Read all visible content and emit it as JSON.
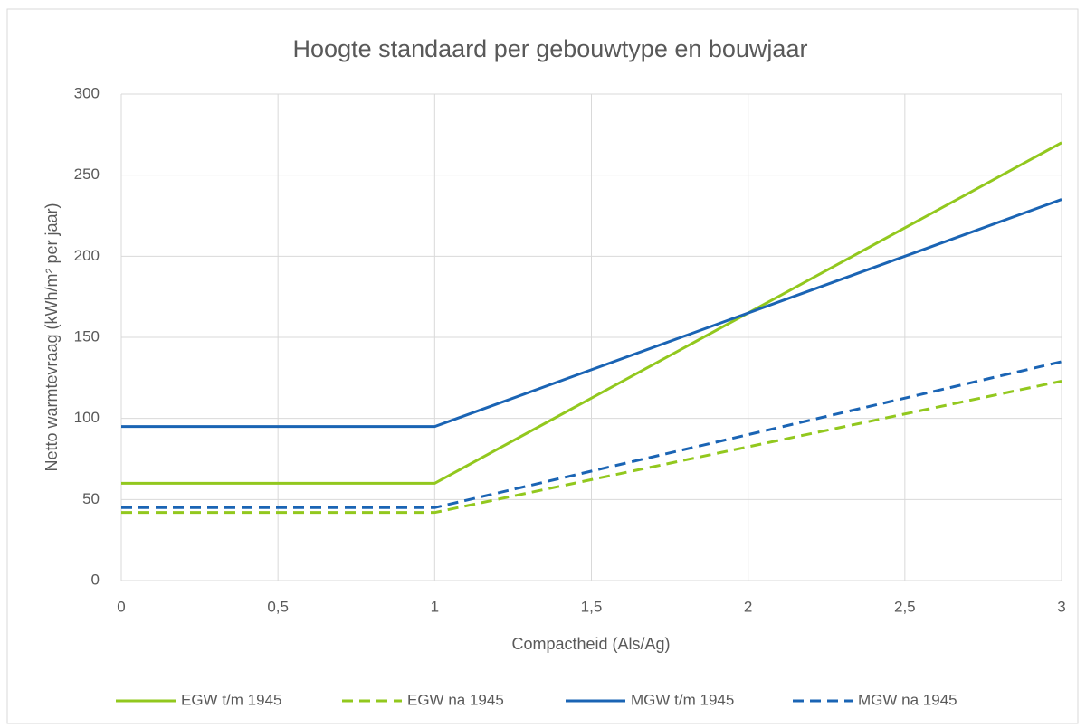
{
  "chart_data": {
    "type": "line",
    "title": "Hoogte standaard per gebouwtype en bouwjaar",
    "x_label": "Compactheid (Als/Ag)",
    "y_label": "Netto warmtevraag (kWh/m² per jaar)",
    "x": [
      0,
      1,
      3
    ],
    "series": [
      {
        "name": "EGW t/m 1945",
        "color": "#92c81e",
        "dashed": false,
        "values": [
          60,
          60,
          270
        ]
      },
      {
        "name": "EGW na 1945",
        "color": "#92c81e",
        "dashed": true,
        "values": [
          42,
          42,
          123
        ]
      },
      {
        "name": "MGW t/m 1945",
        "color": "#1a64b4",
        "dashed": false,
        "values": [
          95,
          95,
          235
        ]
      },
      {
        "name": "MGW na 1945",
        "color": "#1a64b4",
        "dashed": true,
        "values": [
          45,
          45,
          135
        ]
      }
    ],
    "xlim": [
      0,
      3
    ],
    "xticks": [
      0,
      {
        "value": 0.5,
        "label": "0,5"
      },
      1,
      {
        "value": 1.5,
        "label": "1,5"
      },
      2,
      {
        "value": 2.5,
        "label": "2,5"
      },
      3
    ],
    "ylim": [
      0,
      300
    ],
    "yticks": [
      0,
      50,
      100,
      150,
      200,
      250,
      300
    ],
    "grid": true,
    "legend": "bottom"
  }
}
